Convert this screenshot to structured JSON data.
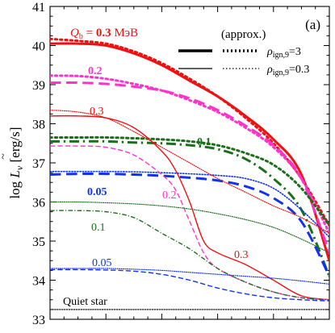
{
  "chart_data": {
    "type": "line",
    "panel_label": "(a)",
    "ylabel": "log L̃_ν [erg/s]",
    "ylabel_parts": {
      "main": "log ",
      "L": "L",
      "sub": "ν",
      "unit": " [erg/s]"
    },
    "xlabel": "",
    "ylim": [
      33,
      41
    ],
    "yticks": [
      "33",
      "34",
      "35",
      "36",
      "37",
      "38",
      "39",
      "40",
      "41"
    ],
    "x_unit": "normalized time (no tick labels shown)",
    "xlim": [
      0,
      1
    ],
    "grid": false,
    "legend": {
      "placement": "top-right",
      "title": "(approx.)",
      "entries": [
        {
          "label": "ρ_ign,9=3",
          "label_rho": "ρ",
          "label_sub": "ign,9",
          "label_val": "=3",
          "style": "thick"
        },
        {
          "label": "ρ_ign,9=0.3",
          "label_rho": "ρ",
          "label_sub": "ign,9",
          "label_val": "=0.3",
          "style": "thin"
        }
      ]
    },
    "annotations": {
      "q_title_parts": {
        "q": "Q",
        "sub": "b",
        "eq": " = ",
        "val": "0.3",
        "unit": " МэВ"
      },
      "label_02_thick": "0.2",
      "label_03_thin": "0.3",
      "label_01_thick": "0.1",
      "label_005_thick": "0.05",
      "label_02_thin": "0.2",
      "label_01_thin": "0.1",
      "label_03_thin_low": "0.3",
      "label_005_thin": "0.05",
      "quiet_star": "Quiet star"
    },
    "colors": {
      "q03": "#ee1111",
      "q02": "#ff33cc",
      "q01": "#1b6f1b",
      "q005": "#1133ee",
      "quiet": "#333333"
    },
    "series": [
      {
        "name": "0.3",
        "group": "q03",
        "rho": "3",
        "dash": "solid",
        "width": 3.0,
        "points": [
          [
            0,
            40.05
          ],
          [
            0.1,
            40.05
          ],
          [
            0.2,
            40.0
          ],
          [
            0.3,
            39.8
          ],
          [
            0.4,
            39.5
          ],
          [
            0.5,
            39.1
          ],
          [
            0.6,
            38.7
          ],
          [
            0.7,
            38.2
          ],
          [
            0.8,
            37.6
          ],
          [
            0.9,
            36.7
          ],
          [
            1.0,
            34.5
          ]
        ]
      },
      {
        "name": "0.3 (approx.)",
        "group": "q03",
        "rho": "3",
        "dash": "dot",
        "width": 3.0,
        "points": [
          [
            0,
            40.17
          ],
          [
            0.1,
            40.12
          ],
          [
            0.2,
            40.05
          ],
          [
            0.3,
            39.85
          ],
          [
            0.4,
            39.55
          ],
          [
            0.5,
            39.15
          ],
          [
            0.6,
            38.7
          ],
          [
            0.7,
            38.15
          ],
          [
            0.8,
            37.5
          ],
          [
            0.9,
            36.6
          ],
          [
            1.0,
            35.4
          ]
        ]
      },
      {
        "name": "0.2",
        "group": "q02",
        "rho": "3",
        "dash": "dash",
        "width": 3.0,
        "points": [
          [
            0,
            39.05
          ],
          [
            0.1,
            39.05
          ],
          [
            0.2,
            39.02
          ],
          [
            0.3,
            38.95
          ],
          [
            0.4,
            38.85
          ],
          [
            0.5,
            38.65
          ],
          [
            0.6,
            38.35
          ],
          [
            0.7,
            37.95
          ],
          [
            0.8,
            37.45
          ],
          [
            0.9,
            36.6
          ],
          [
            1.0,
            34.7
          ]
        ]
      },
      {
        "name": "0.2 (approx.)",
        "group": "q02",
        "rho": "3",
        "dash": "dot",
        "width": 3.0,
        "points": [
          [
            0,
            39.23
          ],
          [
            0.1,
            39.22
          ],
          [
            0.2,
            39.15
          ],
          [
            0.3,
            39.02
          ],
          [
            0.4,
            38.85
          ],
          [
            0.5,
            38.6
          ],
          [
            0.6,
            38.3
          ],
          [
            0.7,
            37.9
          ],
          [
            0.8,
            37.4
          ],
          [
            0.9,
            36.6
          ],
          [
            1.0,
            35.2
          ]
        ]
      },
      {
        "name": "0.1",
        "group": "q01",
        "rho": "3",
        "dash": "dashdot",
        "width": 3.0,
        "points": [
          [
            0,
            37.55
          ],
          [
            0.1,
            37.55
          ],
          [
            0.2,
            37.55
          ],
          [
            0.3,
            37.52
          ],
          [
            0.4,
            37.5
          ],
          [
            0.5,
            37.45
          ],
          [
            0.6,
            37.35
          ],
          [
            0.7,
            37.1
          ],
          [
            0.8,
            36.6
          ],
          [
            0.9,
            35.8
          ],
          [
            1.0,
            34.1
          ]
        ]
      },
      {
        "name": "0.1 (approx.)",
        "group": "q01",
        "rho": "3",
        "dash": "dot",
        "width": 3.0,
        "points": [
          [
            0,
            37.65
          ],
          [
            0.1,
            37.65
          ],
          [
            0.2,
            37.65
          ],
          [
            0.3,
            37.63
          ],
          [
            0.4,
            37.6
          ],
          [
            0.5,
            37.55
          ],
          [
            0.6,
            37.45
          ],
          [
            0.7,
            37.25
          ],
          [
            0.8,
            36.95
          ],
          [
            0.9,
            36.35
          ],
          [
            1.0,
            35.4
          ]
        ]
      },
      {
        "name": "0.05",
        "group": "q005",
        "rho": "3",
        "dash": "dash",
        "width": 3.0,
        "points": [
          [
            0,
            36.7
          ],
          [
            0.1,
            36.72
          ],
          [
            0.2,
            36.72
          ],
          [
            0.3,
            36.7
          ],
          [
            0.4,
            36.67
          ],
          [
            0.5,
            36.62
          ],
          [
            0.6,
            36.55
          ],
          [
            0.7,
            36.4
          ],
          [
            0.8,
            36.1
          ],
          [
            0.9,
            35.5
          ],
          [
            1.0,
            34.1
          ]
        ]
      },
      {
        "name": "0.05 (approx.)",
        "group": "q005",
        "rho": "3",
        "dash": "dot",
        "width": 1.6,
        "points": [
          [
            0,
            36.78
          ],
          [
            0.1,
            36.78
          ],
          [
            0.2,
            36.78
          ],
          [
            0.3,
            36.77
          ],
          [
            0.4,
            36.75
          ],
          [
            0.5,
            36.72
          ],
          [
            0.6,
            36.68
          ],
          [
            0.7,
            36.6
          ],
          [
            0.8,
            36.35
          ],
          [
            0.9,
            35.8
          ],
          [
            1.0,
            35.1
          ]
        ]
      },
      {
        "name": "0.3",
        "group": "q03",
        "rho": "0.3",
        "dash": "solid",
        "width": 1.4,
        "points": [
          [
            0,
            38.2
          ],
          [
            0.1,
            38.2
          ],
          [
            0.2,
            38.15
          ],
          [
            0.3,
            37.9
          ],
          [
            0.4,
            37.3
          ],
          [
            0.45,
            36.8
          ],
          [
            0.5,
            36.0
          ],
          [
            0.55,
            35.0
          ],
          [
            0.6,
            34.7
          ],
          [
            0.7,
            34.4
          ],
          [
            0.8,
            34.0
          ],
          [
            0.9,
            33.6
          ],
          [
            1.0,
            33.5
          ]
        ]
      },
      {
        "name": "0.3 (approx.)",
        "group": "q03",
        "rho": "0.3",
        "dash": "dot",
        "width": 1.2,
        "points": [
          [
            0,
            38.35
          ],
          [
            0.1,
            38.3
          ],
          [
            0.2,
            38.15
          ],
          [
            0.3,
            37.8
          ],
          [
            0.4,
            37.4
          ],
          [
            0.5,
            37.0
          ],
          [
            0.6,
            36.6
          ],
          [
            0.7,
            36.25
          ],
          [
            0.8,
            35.9
          ],
          [
            0.9,
            35.6
          ],
          [
            1.0,
            35.2
          ]
        ]
      },
      {
        "name": "0.2",
        "group": "q02",
        "rho": "0.3",
        "dash": "dash",
        "width": 1.4,
        "points": [
          [
            0,
            37.43
          ],
          [
            0.1,
            37.43
          ],
          [
            0.2,
            37.4
          ],
          [
            0.3,
            37.2
          ],
          [
            0.4,
            36.7
          ],
          [
            0.45,
            36.3
          ],
          [
            0.5,
            35.5
          ],
          [
            0.55,
            34.7
          ],
          [
            0.6,
            34.3
          ],
          [
            0.7,
            33.95
          ],
          [
            0.8,
            33.7
          ],
          [
            0.9,
            33.55
          ],
          [
            1.0,
            33.5
          ]
        ]
      },
      {
        "name": "0.1",
        "group": "q01",
        "rho": "0.3",
        "dash": "dashdot",
        "width": 1.4,
        "points": [
          [
            0,
            35.78
          ],
          [
            0.1,
            35.78
          ],
          [
            0.2,
            35.75
          ],
          [
            0.3,
            35.6
          ],
          [
            0.4,
            35.2
          ],
          [
            0.5,
            34.8
          ],
          [
            0.6,
            34.3
          ],
          [
            0.7,
            33.95
          ],
          [
            0.8,
            33.7
          ],
          [
            0.9,
            33.55
          ],
          [
            1.0,
            33.5
          ]
        ]
      },
      {
        "name": "0.1 (approx.)",
        "group": "q01",
        "rho": "0.3",
        "dash": "dot",
        "width": 1.2,
        "points": [
          [
            0,
            36.0
          ],
          [
            0.1,
            36.0
          ],
          [
            0.2,
            35.98
          ],
          [
            0.3,
            35.95
          ],
          [
            0.4,
            35.9
          ],
          [
            0.5,
            35.82
          ],
          [
            0.6,
            35.7
          ],
          [
            0.7,
            35.55
          ],
          [
            0.8,
            35.35
          ],
          [
            0.9,
            35.05
          ],
          [
            1.0,
            34.7
          ]
        ]
      },
      {
        "name": "0.05",
        "group": "q005",
        "rho": "0.3",
        "dash": "dash",
        "width": 1.4,
        "points": [
          [
            0,
            34.27
          ],
          [
            0.1,
            34.27
          ],
          [
            0.2,
            34.26
          ],
          [
            0.3,
            34.23
          ],
          [
            0.4,
            34.15
          ],
          [
            0.5,
            34.0
          ],
          [
            0.6,
            33.8
          ],
          [
            0.7,
            33.65
          ],
          [
            0.8,
            33.55
          ],
          [
            0.9,
            33.5
          ],
          [
            1.0,
            33.47
          ]
        ]
      },
      {
        "name": "0.05 (approx.)",
        "group": "q005",
        "rho": "0.3",
        "dash": "dot",
        "width": 1.2,
        "points": [
          [
            0,
            34.3
          ],
          [
            0.1,
            34.3
          ],
          [
            0.2,
            34.3
          ],
          [
            0.3,
            34.28
          ],
          [
            0.4,
            34.25
          ],
          [
            0.5,
            34.2
          ],
          [
            0.6,
            34.15
          ],
          [
            0.7,
            34.1
          ],
          [
            0.8,
            34.05
          ],
          [
            0.9,
            33.98
          ],
          [
            1.0,
            33.9
          ]
        ]
      },
      {
        "name": "Quiet star",
        "group": "quiet",
        "rho": "-",
        "dash": "dot",
        "width": 1.4,
        "points": [
          [
            0,
            33.25
          ],
          [
            1.0,
            33.25
          ]
        ]
      }
    ]
  }
}
